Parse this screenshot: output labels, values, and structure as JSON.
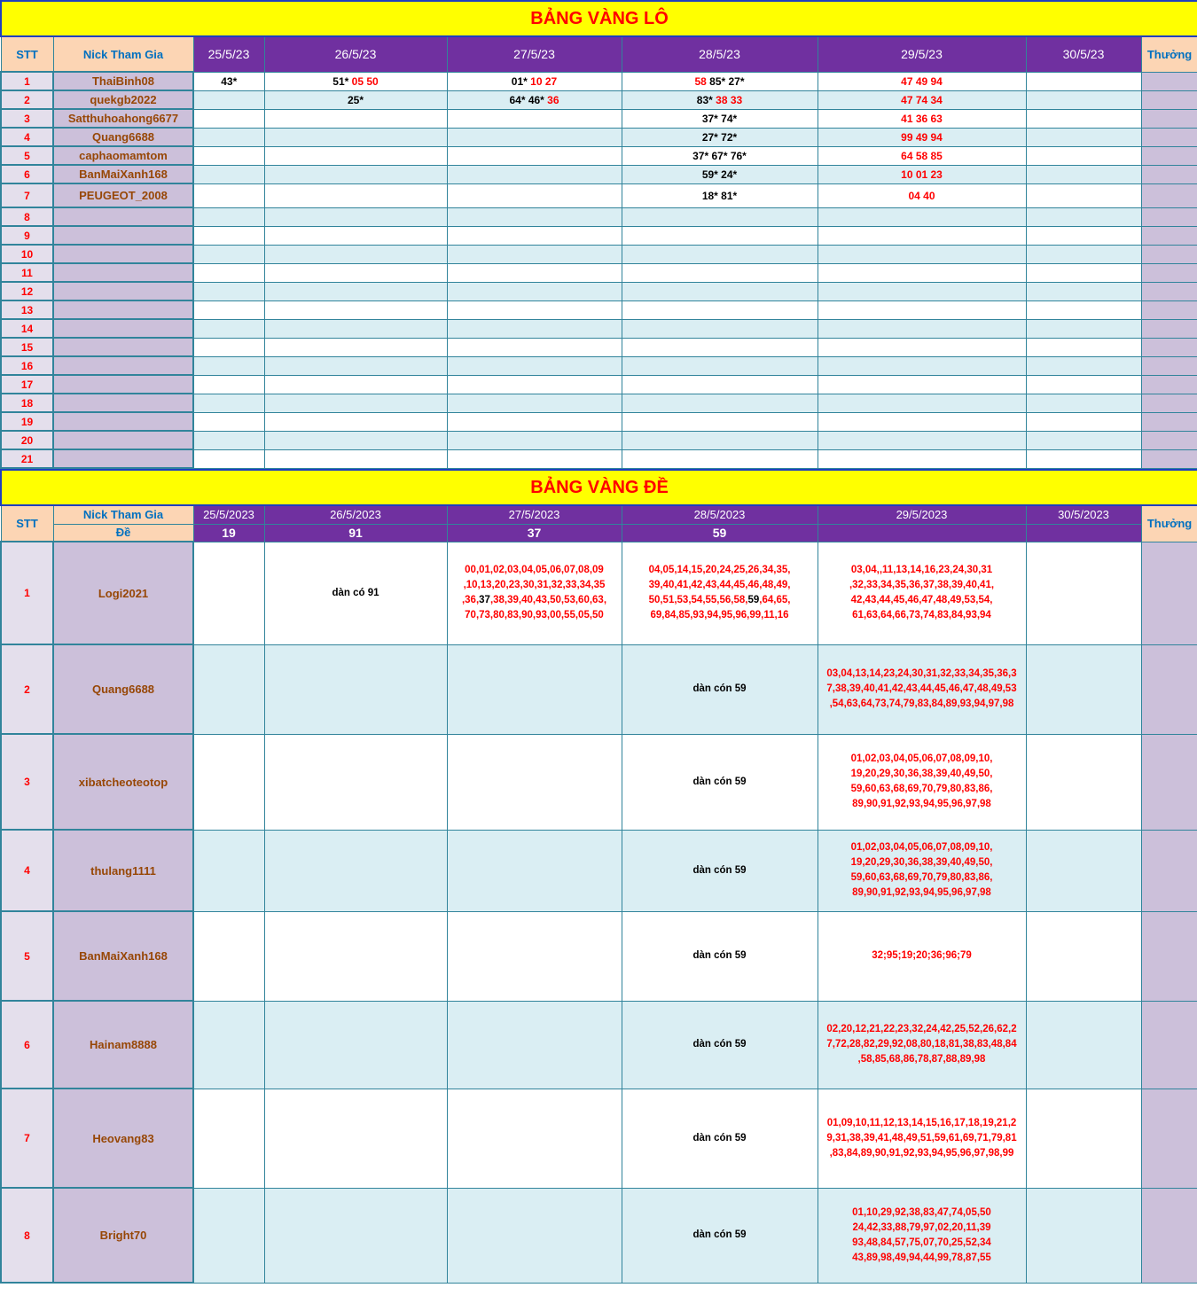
{
  "colors": {
    "title_bg": "#ffff00",
    "title_text": "#ff0000",
    "header_bg": "#7030a0",
    "peach": "#fcd5b4",
    "grid": "#31849b",
    "stripe": "#daeef3",
    "lilac": "#ccc0da"
  },
  "lo": {
    "title": "BẢNG VÀNG LÔ",
    "headers": {
      "stt": "STT",
      "nick": "Nick Tham Gia",
      "dates": [
        "25/5/23",
        "26/5/23",
        "27/5/23",
        "28/5/23",
        "29/5/23",
        "30/5/23"
      ],
      "reward": "Thưởng"
    },
    "rows": [
      {
        "stt": "1",
        "nick": "ThaiBinh08",
        "cells": [
          [
            [
              "43*",
              "b"
            ]
          ],
          [
            [
              "51* ",
              "b"
            ],
            [
              "05 50",
              "r"
            ]
          ],
          [
            [
              "01* ",
              "b"
            ],
            [
              "10 27",
              "r"
            ]
          ],
          [
            [
              "58 ",
              "r"
            ],
            [
              "85* 27*",
              "b"
            ]
          ],
          [
            [
              "47 49 94",
              "r"
            ]
          ],
          []
        ]
      },
      {
        "stt": "2",
        "nick": "quekgb2022",
        "cells": [
          [],
          [
            [
              "25*",
              "b"
            ]
          ],
          [
            [
              "64* 46* ",
              "b"
            ],
            [
              "36",
              "r"
            ]
          ],
          [
            [
              "83* ",
              "b"
            ],
            [
              "38 33",
              "r"
            ]
          ],
          [
            [
              "47 74 34",
              "r"
            ]
          ],
          []
        ]
      },
      {
        "stt": "3",
        "nick": "Satthuhoahong6677",
        "cells": [
          [],
          [],
          [],
          [
            [
              "37* 74*",
              "b"
            ]
          ],
          [
            [
              "41 36 63",
              "r"
            ]
          ],
          []
        ]
      },
      {
        "stt": "4",
        "nick": "Quang6688",
        "cells": [
          [],
          [],
          [],
          [
            [
              "27* 72*",
              "b"
            ]
          ],
          [
            [
              "99 49 94",
              "r"
            ]
          ],
          []
        ]
      },
      {
        "stt": "5",
        "nick": "caphaomamtom",
        "cells": [
          [],
          [],
          [],
          [
            [
              "37* 67* 76*",
              "b"
            ]
          ],
          [
            [
              "64 58 85",
              "r"
            ]
          ],
          []
        ]
      },
      {
        "stt": "6",
        "nick": "BanMaiXanh168",
        "cells": [
          [],
          [],
          [],
          [
            [
              "59* 24*",
              "b"
            ]
          ],
          [
            [
              "10 01 23",
              "r"
            ]
          ],
          []
        ]
      },
      {
        "stt": "7",
        "nick": "PEUGEOT_2008",
        "cells": [
          [],
          [],
          [],
          [
            [
              "18* 81*",
              "b"
            ]
          ],
          [
            [
              "04 40",
              "r"
            ]
          ],
          []
        ]
      },
      {
        "stt": "8",
        "nick": "",
        "cells": [
          [],
          [],
          [],
          [],
          [],
          []
        ]
      },
      {
        "stt": "9",
        "nick": "",
        "cells": [
          [],
          [],
          [],
          [],
          [],
          []
        ]
      },
      {
        "stt": "10",
        "nick": "",
        "cells": [
          [],
          [],
          [],
          [],
          [],
          []
        ]
      },
      {
        "stt": "11",
        "nick": "",
        "cells": [
          [],
          [],
          [],
          [],
          [],
          []
        ]
      },
      {
        "stt": "12",
        "nick": "",
        "cells": [
          [],
          [],
          [],
          [],
          [],
          []
        ]
      },
      {
        "stt": "13",
        "nick": "",
        "cells": [
          [],
          [],
          [],
          [],
          [],
          []
        ]
      },
      {
        "stt": "14",
        "nick": "",
        "cells": [
          [],
          [],
          [],
          [],
          [],
          []
        ]
      },
      {
        "stt": "15",
        "nick": "",
        "cells": [
          [],
          [],
          [],
          [],
          [],
          []
        ]
      },
      {
        "stt": "16",
        "nick": "",
        "cells": [
          [],
          [],
          [],
          [],
          [],
          []
        ]
      },
      {
        "stt": "17",
        "nick": "",
        "cells": [
          [],
          [],
          [],
          [],
          [],
          []
        ]
      },
      {
        "stt": "18",
        "nick": "",
        "cells": [
          [],
          [],
          [],
          [],
          [],
          []
        ]
      },
      {
        "stt": "19",
        "nick": "",
        "cells": [
          [],
          [],
          [],
          [],
          [],
          []
        ]
      },
      {
        "stt": "20",
        "nick": "",
        "cells": [
          [],
          [],
          [],
          [],
          [],
          []
        ]
      },
      {
        "stt": "21",
        "nick": "",
        "cells": [
          [],
          [],
          [],
          [],
          [],
          []
        ]
      }
    ]
  },
  "de": {
    "title": "BẢNG VÀNG ĐỀ",
    "headers": {
      "stt": "STT",
      "nick": "Nick Tham Gia",
      "de": "Đề",
      "dates": [
        "25/5/2023",
        "26/5/2023",
        "27/5/2023",
        "28/5/2023",
        "29/5/2023",
        "30/5/2023"
      ],
      "results": [
        "19",
        "91",
        "37",
        "59",
        "",
        ""
      ],
      "reward": "Thưởng"
    },
    "rows": [
      {
        "stt": "1",
        "nick": "Logi2021",
        "cells": [
          [],
          [
            [
              "dàn có 91",
              "b"
            ]
          ],
          [
            [
              "00,01,02,03,04,05,06,07,08,09\n,10,13,20,23,30,31,32,33,34,35\n,36,",
              "r"
            ],
            [
              "37",
              "b"
            ],
            [
              ",38,39,40,43,50,53,60,63,\n70,73,80,83,90,93,00,55,05,50",
              "r"
            ]
          ],
          [
            [
              "04,05,14,15,20,24,25,26,34,35,\n39,40,41,42,43,44,45,46,48,49,\n50,51,53,54,55,56,58,",
              "r"
            ],
            [
              "59",
              "b"
            ],
            [
              ",64,65,\n69,84,85,93,94,95,96,99,11,16",
              "r"
            ]
          ],
          [
            [
              "03,04,,11,13,14,16,23,24,30,31\n,32,33,34,35,36,37,38,39,40,41,\n42,43,44,45,46,47,48,49,53,54,\n61,63,64,66,73,74,83,84,93,94",
              "r"
            ]
          ],
          []
        ]
      },
      {
        "stt": "2",
        "nick": "Quang6688",
        "cells": [
          [],
          [],
          [],
          [
            [
              "dàn cón 59",
              "b"
            ]
          ],
          [
            [
              "03,04,13,14,23,24,30,31,32,33,34,35,36,3\n7,38,39,40,41,42,43,44,45,46,47,48,49,53\n,54,63,64,73,74,79,83,84,89,93,94,97,98",
              "r"
            ]
          ],
          []
        ]
      },
      {
        "stt": "3",
        "nick": "xibatcheoteotop",
        "cells": [
          [],
          [],
          [],
          [
            [
              "dàn cón 59",
              "b"
            ]
          ],
          [
            [
              "01,02,03,04,05,06,07,08,09,10,\n19,20,29,30,36,38,39,40,49,50,\n59,60,63,68,69,70,79,80,83,86,\n89,90,91,92,93,94,95,96,97,98",
              "r"
            ]
          ],
          []
        ]
      },
      {
        "stt": "4",
        "nick": "thulang1111",
        "cells": [
          [],
          [],
          [],
          [
            [
              "dàn cón 59",
              "b"
            ]
          ],
          [
            [
              "01,02,03,04,05,06,07,08,09,10,\n19,20,29,30,36,38,39,40,49,50,\n59,60,63,68,69,70,79,80,83,86,\n89,90,91,92,93,94,95,96,97,98",
              "r"
            ]
          ],
          []
        ]
      },
      {
        "stt": "5",
        "nick": "BanMaiXanh168",
        "cells": [
          [],
          [],
          [],
          [
            [
              "dàn cón 59",
              "b"
            ]
          ],
          [
            [
              "32;95;19;20;36;96;79",
              "r"
            ]
          ],
          []
        ]
      },
      {
        "stt": "6",
        "nick": "Hainam8888",
        "cells": [
          [],
          [],
          [],
          [
            [
              "dàn cón 59",
              "b"
            ]
          ],
          [
            [
              "02,20,12,21,22,23,32,24,42,25,52,26,62,2\n7,72,28,82,29,92,08,80,18,81,38,83,48,84\n,58,85,68,86,78,87,88,89,98",
              "r"
            ]
          ],
          []
        ]
      },
      {
        "stt": "7",
        "nick": "Heovang83",
        "cells": [
          [],
          [],
          [],
          [
            [
              "dàn cón 59",
              "b"
            ]
          ],
          [
            [
              "01,09,10,11,12,13,14,15,16,17,18,19,21,2\n9,31,38,39,41,48,49,51,59,61,69,71,79,81\n,83,84,89,90,91,92,93,94,95,96,97,98,99",
              "r"
            ]
          ],
          []
        ]
      },
      {
        "stt": "8",
        "nick": "Bright70",
        "cells": [
          [],
          [],
          [],
          [
            [
              "dàn cón 59",
              "b"
            ]
          ],
          [
            [
              "01,10,29,92,38,83,47,74,05,50\n24,42,33,88,79,97,02,20,11,39\n93,48,84,57,75,07,70,25,52,34\n43,89,98,49,94,44,99,78,87,55",
              "r"
            ]
          ],
          []
        ]
      }
    ]
  }
}
